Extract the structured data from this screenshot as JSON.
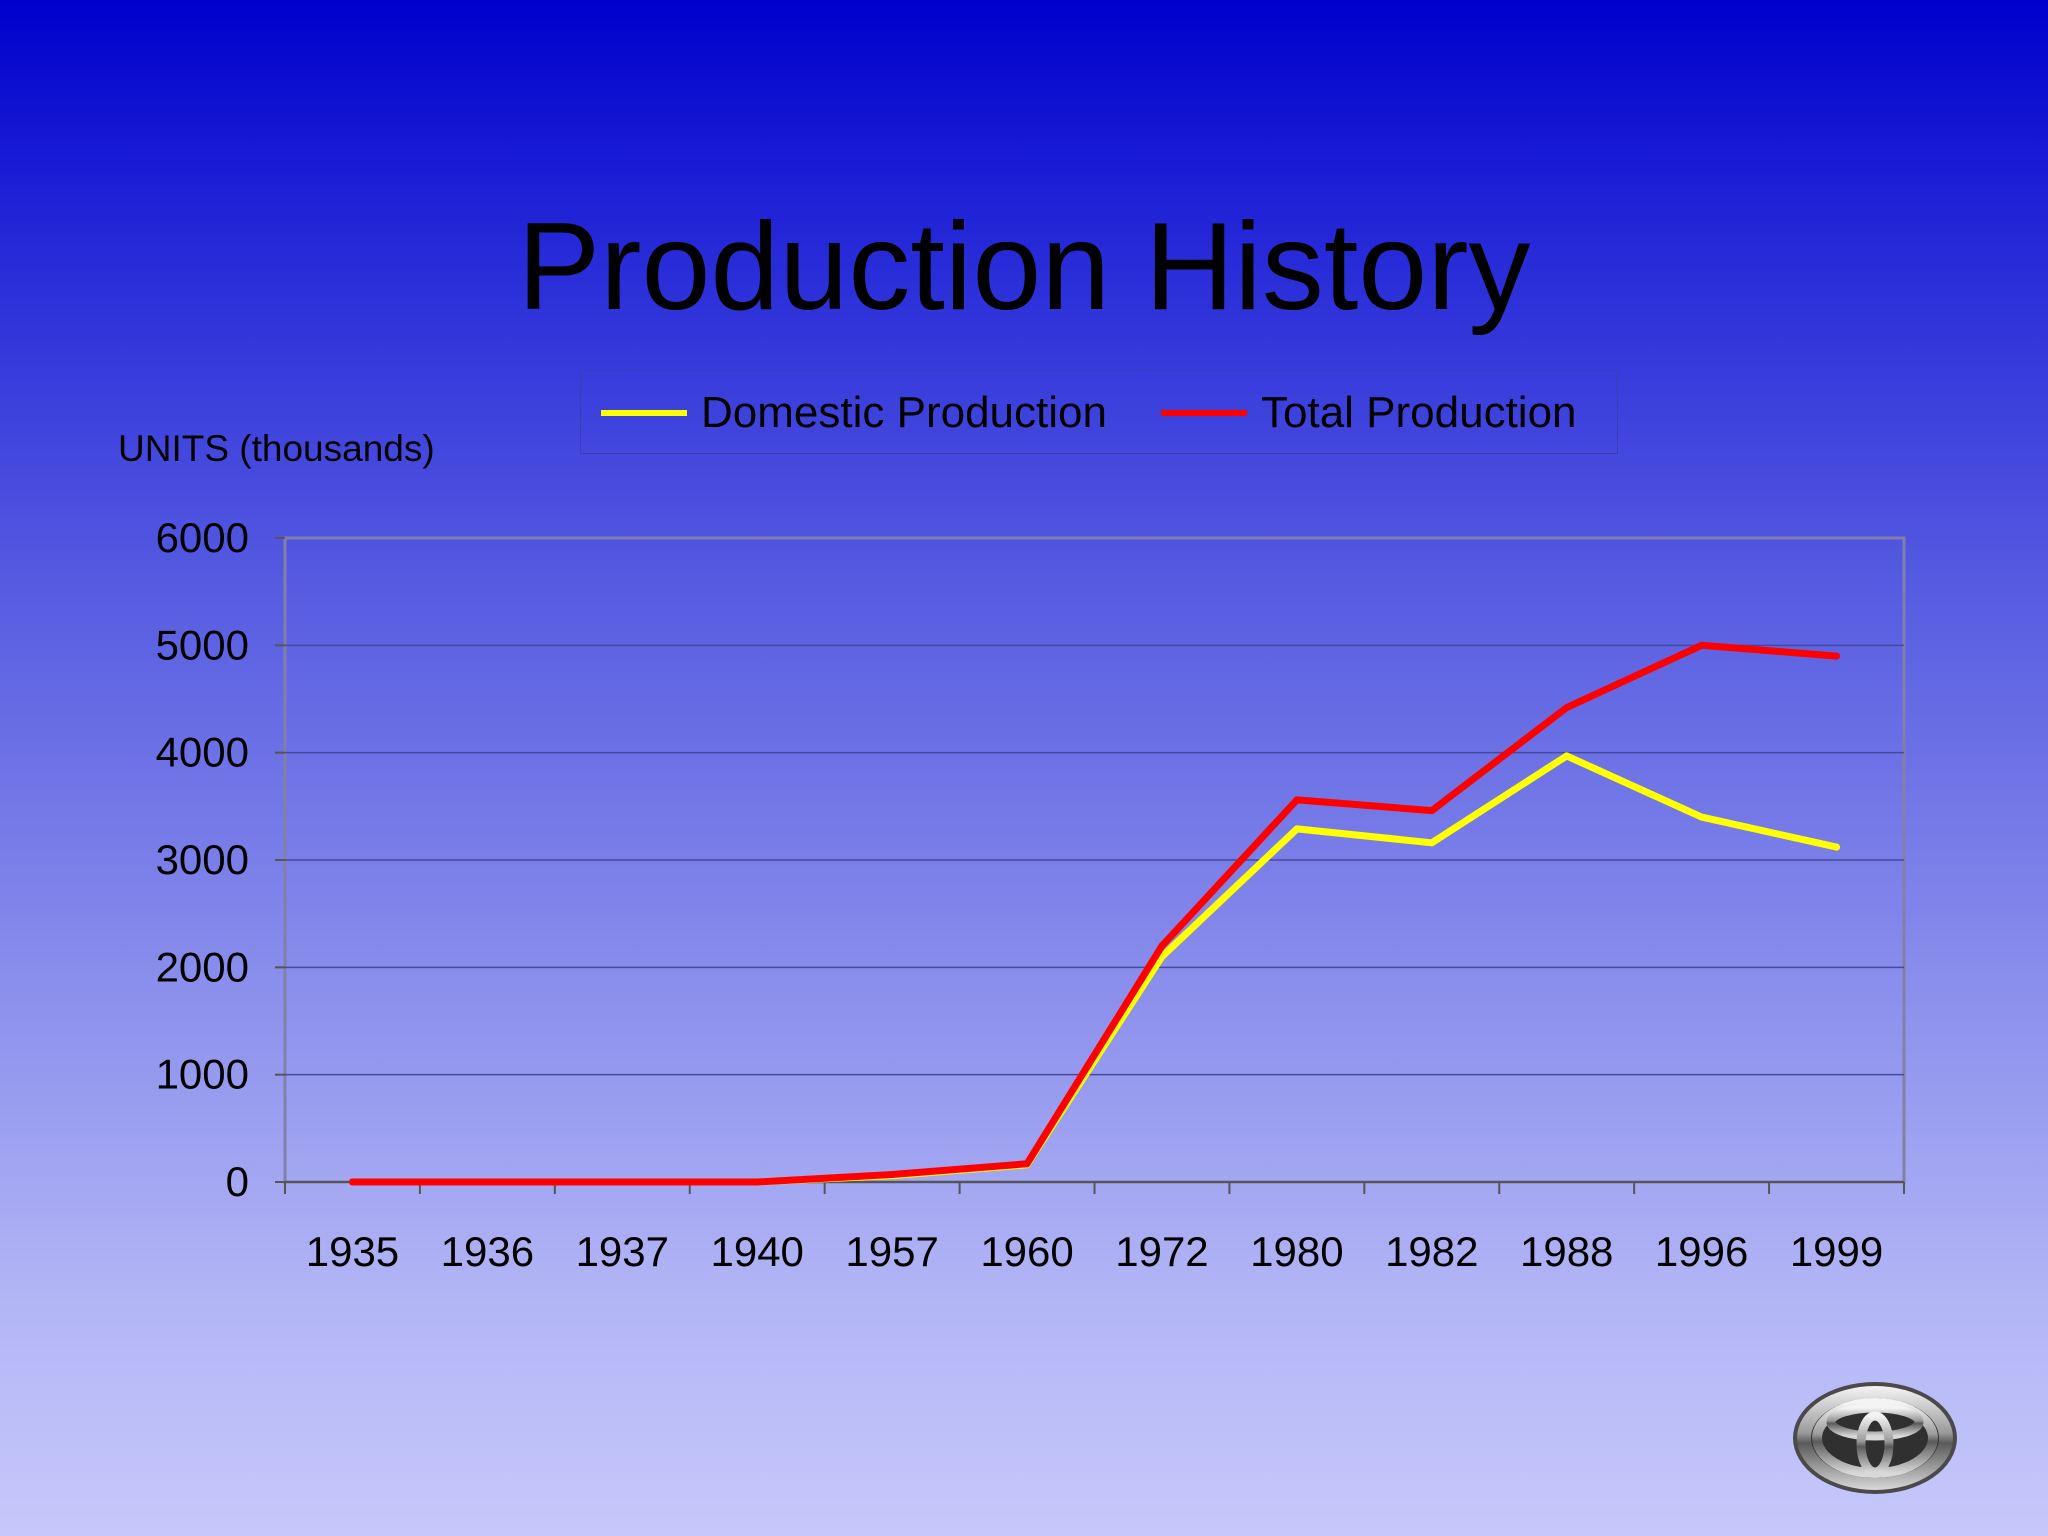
{
  "slide": {
    "title": "Production History",
    "y_axis_label": "UNITS (thousands)",
    "logo_icon": "toyota-logo-icon"
  },
  "chart_data": {
    "type": "line",
    "title": "Production History",
    "ylabel": "UNITS (thousands)",
    "xlabel": "",
    "categories": [
      "1935",
      "1936",
      "1937",
      "1940",
      "1957",
      "1960",
      "1972",
      "1980",
      "1982",
      "1988",
      "1996",
      "1999"
    ],
    "yticks": [
      0,
      1000,
      2000,
      3000,
      4000,
      5000,
      6000
    ],
    "ylim": [
      0,
      6000
    ],
    "grid": true,
    "legend_position": "top",
    "series": [
      {
        "name": "Domestic Production",
        "color": "#ffff00",
        "values": [
          0,
          0,
          0,
          0,
          60,
          160,
          2100,
          3290,
          3160,
          3970,
          3400,
          3120
        ]
      },
      {
        "name": "Total Production",
        "color": "#ff0000",
        "values": [
          0,
          0,
          0,
          0,
          70,
          170,
          2200,
          3560,
          3460,
          4420,
          5000,
          4900
        ]
      }
    ]
  }
}
